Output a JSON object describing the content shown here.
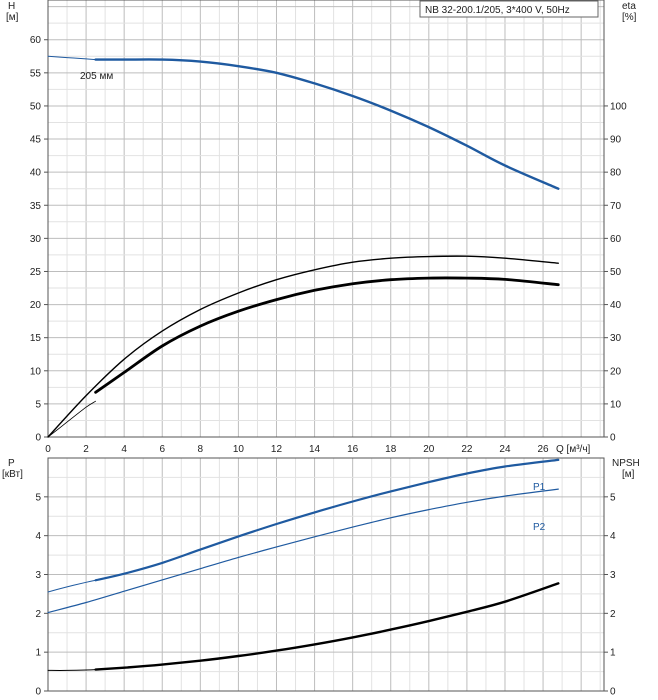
{
  "chart_data": [
    {
      "type": "line",
      "title": "NB 32-200.1/205, 3*400 V, 50Hz",
      "xlabel": "Q [м³/ч]",
      "x_ticks": [
        0,
        2,
        4,
        6,
        8,
        10,
        12,
        14,
        16,
        18,
        20,
        22,
        24,
        26
      ],
      "xlim": [
        0,
        29.2
      ],
      "left_axis": {
        "label_top": "H",
        "label_unit": "[м]",
        "ylim": [
          0,
          66
        ],
        "ticks": [
          0,
          5,
          10,
          15,
          20,
          25,
          30,
          35,
          40,
          45,
          50,
          55,
          60
        ]
      },
      "right_axis": {
        "label_top": "eta",
        "label_unit": "[%]",
        "ylim": [
          0,
          132
        ],
        "ticks": [
          0,
          10,
          20,
          30,
          40,
          50,
          60,
          70,
          80,
          90,
          100
        ]
      },
      "grid": true,
      "annotations": [
        {
          "text": "205 мм"
        }
      ],
      "series": [
        {
          "axis": "left",
          "color": "#1f5aa0",
          "width": 2.4,
          "x": [
            2.5,
            4,
            6,
            8,
            10,
            12,
            14,
            16,
            18,
            20,
            22,
            24,
            26.8
          ],
          "values": [
            57,
            57,
            57,
            56.7,
            56,
            55,
            53.4,
            51.5,
            49.3,
            46.8,
            44,
            41,
            37.5
          ]
        },
        {
          "axis": "left",
          "color": "#1f5aa0",
          "width": 1,
          "x": [
            0,
            1,
            2,
            2.5
          ],
          "values": [
            57.5,
            57.3,
            57.1,
            57
          ]
        },
        {
          "axis": "right",
          "color": "#000000",
          "width": 1.4,
          "x": [
            0,
            2,
            4,
            6,
            8,
            10,
            12,
            14,
            16,
            18,
            20,
            22,
            24,
            26.8
          ],
          "values": [
            0,
            12.5,
            23.5,
            32,
            38.5,
            43.5,
            47.5,
            50.5,
            52.8,
            54,
            54.5,
            54.6,
            54,
            52.5
          ]
        },
        {
          "axis": "right",
          "color": "#000000",
          "width": 2.8,
          "x": [
            2.5,
            4,
            6,
            8,
            10,
            12,
            14,
            16,
            18,
            20,
            22,
            24,
            26.8
          ],
          "values": [
            13.5,
            19.5,
            27.5,
            33.5,
            38,
            41.5,
            44.3,
            46.3,
            47.5,
            48,
            48,
            47.6,
            46
          ]
        },
        {
          "axis": "right",
          "color": "#000000",
          "width": 0.8,
          "x": [
            0,
            1,
            2,
            2.5
          ],
          "values": [
            0,
            4.5,
            9,
            10.8
          ]
        }
      ]
    },
    {
      "type": "line",
      "xlim": [
        0,
        29.2
      ],
      "left_axis": {
        "label_top": "P",
        "label_unit": "[кВт]",
        "ylim": [
          0,
          6
        ],
        "ticks": [
          0,
          1,
          2,
          3,
          4,
          5
        ]
      },
      "right_axis": {
        "label_top": "NPSH",
        "label_unit": "[м]",
        "ylim": [
          0,
          6
        ],
        "ticks": [
          0,
          1,
          2,
          3,
          4,
          5
        ]
      },
      "grid": true,
      "series": [
        {
          "name": "P1",
          "axis": "left",
          "color": "#1f5aa0",
          "width": 2.2,
          "label_color": "#1f5aa0",
          "x": [
            2.5,
            4,
            6,
            8,
            10,
            12,
            14,
            16,
            18,
            20,
            22,
            24,
            26.8
          ],
          "values": [
            2.85,
            3.02,
            3.3,
            3.64,
            3.98,
            4.3,
            4.6,
            4.88,
            5.14,
            5.38,
            5.6,
            5.78,
            5.95
          ]
        },
        {
          "name": "P2",
          "axis": "left",
          "color": "#1f5aa0",
          "width": 1.2,
          "label_color": "#1f5aa0",
          "x": [
            0,
            2,
            4,
            6,
            8,
            10,
            12,
            14,
            16,
            18,
            20,
            22,
            24,
            26.8
          ],
          "values": [
            2.02,
            2.28,
            2.57,
            2.86,
            3.15,
            3.44,
            3.71,
            3.97,
            4.22,
            4.46,
            4.67,
            4.86,
            5.02,
            5.2
          ]
        },
        {
          "axis": "left",
          "color": "#1f5aa0",
          "width": 1,
          "x": [
            0,
            1,
            2,
            2.5
          ],
          "values": [
            2.55,
            2.68,
            2.8,
            2.85
          ]
        },
        {
          "axis": "right",
          "color": "#000000",
          "width": 2.4,
          "x": [
            2.5,
            4,
            6,
            8,
            10,
            12,
            14,
            16,
            18,
            20,
            22,
            24,
            26.8
          ],
          "values": [
            0.55,
            0.6,
            0.68,
            0.78,
            0.9,
            1.04,
            1.2,
            1.38,
            1.58,
            1.8,
            2.04,
            2.3,
            2.77
          ]
        },
        {
          "axis": "right",
          "color": "#000000",
          "width": 1,
          "x": [
            0,
            1,
            2,
            2.5
          ],
          "values": [
            0.53,
            0.53,
            0.54,
            0.55
          ]
        }
      ]
    }
  ]
}
